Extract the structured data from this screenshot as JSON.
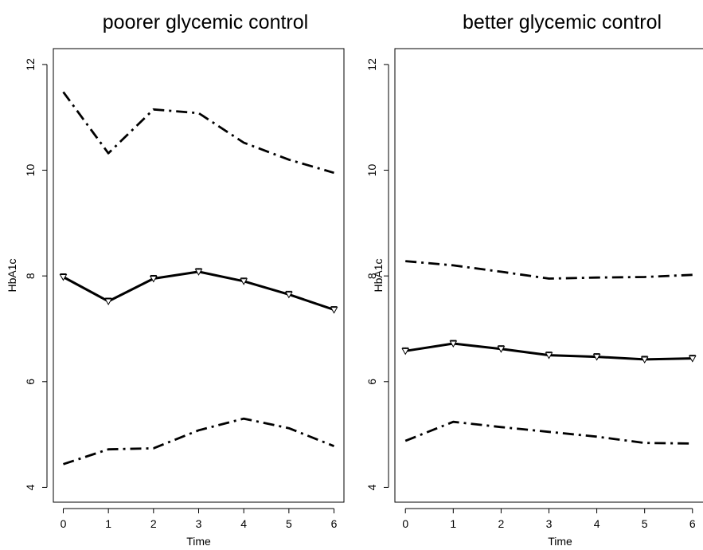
{
  "chart_data": [
    {
      "type": "line",
      "title": "poorer glycemic control",
      "xlabel": "Time",
      "ylabel": "HbA1c",
      "x": [
        0,
        1,
        2,
        3,
        4,
        5,
        6
      ],
      "xticks": [
        "0",
        "1",
        "2",
        "3",
        "4",
        "5",
        "6"
      ],
      "yticks": [
        "4",
        "6",
        "8",
        "10",
        "12"
      ],
      "xlim": [
        -0.22,
        6.22
      ],
      "ylim": [
        3.72,
        12.3
      ],
      "grid": false,
      "series": [
        {
          "style": "solid",
          "markers": true,
          "values": [
            7.98,
            7.52,
            7.95,
            8.08,
            7.9,
            7.65,
            7.36
          ]
        },
        {
          "style": "dashdot",
          "markers": false,
          "values": [
            11.48,
            10.32,
            11.15,
            11.08,
            10.52,
            10.2,
            9.95
          ]
        },
        {
          "style": "dashdot",
          "markers": false,
          "values": [
            4.44,
            4.72,
            4.74,
            5.08,
            5.3,
            5.12,
            4.78
          ]
        }
      ]
    },
    {
      "type": "line",
      "title": "better glycemic control",
      "xlabel": "Time",
      "ylabel": "HbA1c",
      "x": [
        0,
        1,
        2,
        3,
        4,
        5,
        6
      ],
      "xticks": [
        "0",
        "1",
        "2",
        "3",
        "4",
        "5",
        "6"
      ],
      "yticks": [
        "4",
        "6",
        "8",
        "10",
        "12"
      ],
      "xlim": [
        -0.22,
        6.22
      ],
      "ylim": [
        3.72,
        12.3
      ],
      "grid": false,
      "series": [
        {
          "style": "solid",
          "markers": true,
          "values": [
            6.58,
            6.72,
            6.62,
            6.5,
            6.47,
            6.42,
            6.44
          ]
        },
        {
          "style": "dashdot",
          "markers": false,
          "values": [
            8.28,
            8.2,
            8.08,
            7.95,
            7.97,
            7.98,
            8.02
          ]
        },
        {
          "style": "dashdot",
          "markers": false,
          "values": [
            4.88,
            5.24,
            5.14,
            5.05,
            4.96,
            4.84,
            4.83
          ]
        }
      ]
    }
  ]
}
